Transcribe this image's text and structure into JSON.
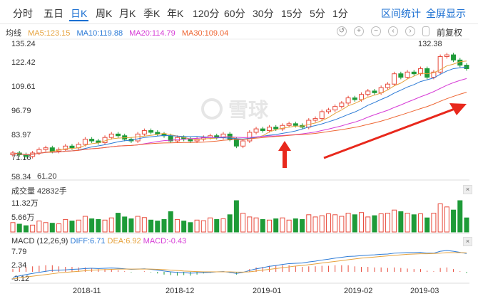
{
  "tabs": [
    "分时",
    "五日",
    "日K",
    "周K",
    "月K",
    "季K",
    "年K",
    "120分",
    "60分",
    "30分",
    "15分",
    "5分",
    "1分"
  ],
  "active_tab": 2,
  "toolbar": {
    "interval_stats": "区间统计",
    "fullscreen": "全屏显示"
  },
  "ma": {
    "label": "均线",
    "ma5": "MA5:123.15",
    "ma10": "MA10:119.88",
    "ma20": "MA20:114.79",
    "ma30": "MA30:109.04"
  },
  "tools": {
    "back": "↺",
    "zoom_in": "+",
    "zoom_out": "−",
    "prev": "‹",
    "next": "›"
  },
  "adjust": "前复权",
  "price_axis": [
    "135.24",
    "122.42",
    "109.61",
    "96.79",
    "83.97",
    "71.16",
    "58.34"
  ],
  "annotations": {
    "high": "132.38",
    "low": "61.20"
  },
  "watermark": "雪球",
  "volume": {
    "title": "成交量 42832手",
    "ticks": [
      "11.32万",
      "5.66万"
    ]
  },
  "macd": {
    "title": "MACD (12,26,9)",
    "diff": "DIFF:6.71",
    "dea": "DEA:6.92",
    "macd": "MACD:-0.43",
    "ticks": [
      "7.79",
      "2.34",
      "-3.12"
    ]
  },
  "x_labels": [
    "2018-11",
    "2018-12",
    "2019-01",
    "2019-02",
    "2019-03"
  ],
  "colors": {
    "up": "#e84b3c",
    "down": "#1e9b38",
    "ma5": "#e6a23c",
    "ma10": "#2b7ad6",
    "ma20": "#d63bd6",
    "ma30": "#ee6633",
    "accent": "#1a6fd2"
  },
  "chart_data": {
    "type": "candlestick",
    "ylim": [
      58.34,
      135.24
    ],
    "closes": [
      72,
      71,
      70,
      72,
      74,
      75,
      73,
      74,
      76,
      75,
      77,
      80,
      79,
      78,
      81,
      83,
      82,
      80,
      79,
      83,
      85,
      84,
      83,
      82,
      79,
      81,
      80,
      79,
      80,
      81,
      82,
      81,
      83,
      80,
      76,
      79,
      84,
      86,
      85,
      87,
      86,
      88,
      89,
      88,
      87,
      91,
      92,
      96,
      97,
      99,
      101,
      104,
      103,
      106,
      108,
      107,
      110,
      112,
      118,
      116,
      119,
      118,
      121,
      116,
      119,
      128,
      129,
      126,
      123,
      121
    ],
    "volume_ylim": [
      0,
      113200
    ],
    "volumes": [
      30,
      25,
      20,
      22,
      35,
      30,
      28,
      26,
      40,
      35,
      38,
      50,
      42,
      40,
      38,
      45,
      60,
      48,
      42,
      50,
      46,
      38,
      35,
      40,
      65,
      40,
      35,
      30,
      38,
      36,
      45,
      40,
      42,
      55,
      100,
      60,
      48,
      45,
      40,
      38,
      42,
      45,
      38,
      42,
      40,
      55,
      48,
      52,
      58,
      55,
      50,
      60,
      55,
      62,
      48,
      52,
      58,
      60,
      70,
      65,
      60,
      55,
      58,
      45,
      60,
      90,
      80,
      70,
      100,
      45
    ],
    "macd_ylim": [
      -3.12,
      7.79
    ],
    "dif": [
      -2,
      -1.5,
      -1,
      -0.6,
      -0.2,
      0.2,
      0.5,
      0.6,
      0.7,
      0.9,
      1,
      1.2,
      1.3,
      1.2,
      1.3,
      1.4,
      1.3,
      1.1,
      0.9,
      1,
      1.1,
      0.9,
      0.6,
      0.3,
      0,
      -0.2,
      -0.3,
      -0.5,
      -0.4,
      -0.3,
      -0.2,
      0,
      0.1,
      -0.2,
      -0.6,
      -0.2,
      0.5,
      1.1,
      1.5,
      2,
      2.3,
      2.7,
      3,
      3.1,
      3.2,
      3.6,
      3.9,
      4.3,
      4.6,
      5,
      5.3,
      5.6,
      5.7,
      5.9,
      6.1,
      6.2,
      6.4,
      6.5,
      6.8,
      6.9,
      7,
      7,
      7.1,
      6.8,
      6.8,
      7.5,
      7.8,
      7.5,
      7.1,
      6.7
    ],
    "dea": [
      -2.5,
      -2.2,
      -1.9,
      -1.6,
      -1.3,
      -1,
      -0.7,
      -0.4,
      -0.2,
      0,
      0.2,
      0.4,
      0.6,
      0.7,
      0.8,
      0.9,
      1,
      1,
      1,
      1,
      1,
      1,
      0.9,
      0.8,
      0.6,
      0.5,
      0.3,
      0.2,
      0.1,
      0,
      0,
      0,
      0,
      0,
      -0.1,
      -0.1,
      0,
      0.3,
      0.6,
      0.9,
      1.2,
      1.5,
      1.8,
      2.1,
      2.3,
      2.6,
      2.9,
      3.2,
      3.5,
      3.8,
      4.1,
      4.4,
      4.7,
      5,
      5.2,
      5.4,
      5.6,
      5.8,
      6,
      6.2,
      6.4,
      6.5,
      6.6,
      6.6,
      6.7,
      6.8,
      7,
      7,
      7,
      6.9
    ]
  }
}
